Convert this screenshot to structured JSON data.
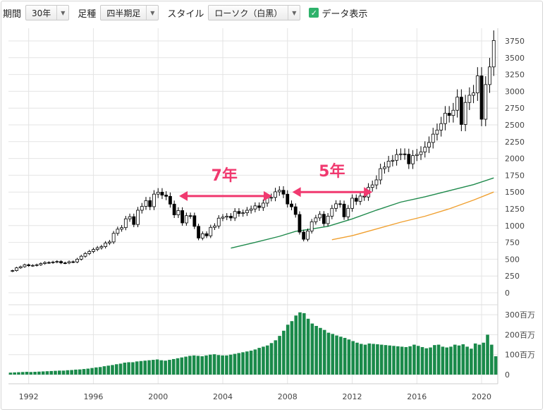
{
  "toolbar": {
    "period_label": "期間",
    "period_value": "30年",
    "bar_label": "足種",
    "bar_value": "四半期足",
    "style_label": "スタイル",
    "style_value": "ローソク（白黒）",
    "data_display_label": "データ表示",
    "data_display_checked": true
  },
  "chart_data": [
    {
      "type": "candlestick",
      "title": "",
      "xlabel": "",
      "ylabel": "",
      "ylim": [
        0,
        3750
      ],
      "yticks": [
        0,
        250,
        500,
        750,
        1000,
        1250,
        1500,
        1750,
        2000,
        2250,
        2500,
        2750,
        3000,
        3250,
        3500,
        3750
      ],
      "xticks": [
        "1992",
        "1996",
        "2000",
        "2004",
        "2008",
        "2012",
        "2016",
        "2020"
      ],
      "x_range": [
        1990.75,
        2021.0
      ],
      "grid": true,
      "candle_up_color": "#ffffff",
      "candle_down_color": "#000000",
      "closes": [
        [
          1991.0,
          330
        ],
        [
          1991.25,
          371
        ],
        [
          1991.5,
          388
        ],
        [
          1991.75,
          417
        ],
        [
          1992.0,
          403
        ],
        [
          1992.25,
          408
        ],
        [
          1992.5,
          417
        ],
        [
          1992.75,
          435
        ],
        [
          1993.0,
          451
        ],
        [
          1993.25,
          450
        ],
        [
          1993.5,
          458
        ],
        [
          1993.75,
          466
        ],
        [
          1994.0,
          445
        ],
        [
          1994.25,
          444
        ],
        [
          1994.5,
          462
        ],
        [
          1994.75,
          459
        ],
        [
          1995.0,
          500
        ],
        [
          1995.25,
          544
        ],
        [
          1995.5,
          584
        ],
        [
          1995.75,
          615
        ],
        [
          1996.0,
          645
        ],
        [
          1996.25,
          670
        ],
        [
          1996.5,
          687
        ],
        [
          1996.75,
          740
        ],
        [
          1997.0,
          757
        ],
        [
          1997.25,
          885
        ],
        [
          1997.5,
          947
        ],
        [
          1997.75,
          970
        ],
        [
          1998.0,
          1101
        ],
        [
          1998.25,
          1133
        ],
        [
          1998.5,
          1017
        ],
        [
          1998.75,
          1229
        ],
        [
          1999.0,
          1286
        ],
        [
          1999.25,
          1372
        ],
        [
          1999.5,
          1282
        ],
        [
          1999.75,
          1469
        ],
        [
          2000.0,
          1498
        ],
        [
          2000.25,
          1454
        ],
        [
          2000.5,
          1436
        ],
        [
          2000.75,
          1320
        ],
        [
          2001.0,
          1160
        ],
        [
          2001.25,
          1224
        ],
        [
          2001.5,
          1040
        ],
        [
          2001.75,
          1148
        ],
        [
          2002.0,
          1147
        ],
        [
          2002.25,
          989
        ],
        [
          2002.5,
          815
        ],
        [
          2002.75,
          879
        ],
        [
          2003.0,
          848
        ],
        [
          2003.25,
          974
        ],
        [
          2003.5,
          995
        ],
        [
          2003.75,
          1111
        ],
        [
          2004.0,
          1126
        ],
        [
          2004.25,
          1140
        ],
        [
          2004.5,
          1114
        ],
        [
          2004.75,
          1211
        ],
        [
          2005.0,
          1180
        ],
        [
          2005.25,
          1191
        ],
        [
          2005.5,
          1228
        ],
        [
          2005.75,
          1248
        ],
        [
          2006.0,
          1294
        ],
        [
          2006.25,
          1270
        ],
        [
          2006.5,
          1335
        ],
        [
          2006.75,
          1418
        ],
        [
          2007.0,
          1420
        ],
        [
          2007.25,
          1503
        ],
        [
          2007.5,
          1526
        ],
        [
          2007.75,
          1468
        ],
        [
          2008.0,
          1322
        ],
        [
          2008.25,
          1280
        ],
        [
          2008.5,
          1166
        ],
        [
          2008.75,
          903
        ],
        [
          2009.0,
          797
        ],
        [
          2009.25,
          919
        ],
        [
          2009.5,
          1057
        ],
        [
          2009.75,
          1115
        ],
        [
          2010.0,
          1169
        ],
        [
          2010.25,
          1030
        ],
        [
          2010.5,
          1141
        ],
        [
          2010.75,
          1257
        ],
        [
          2011.0,
          1325
        ],
        [
          2011.25,
          1320
        ],
        [
          2011.5,
          1131
        ],
        [
          2011.75,
          1257
        ],
        [
          2012.0,
          1408
        ],
        [
          2012.25,
          1362
        ],
        [
          2012.5,
          1440
        ],
        [
          2012.75,
          1426
        ],
        [
          2013.0,
          1569
        ],
        [
          2013.25,
          1606
        ],
        [
          2013.5,
          1681
        ],
        [
          2013.75,
          1848
        ],
        [
          2014.0,
          1872
        ],
        [
          2014.25,
          1960
        ],
        [
          2014.5,
          1972
        ],
        [
          2014.75,
          2058
        ],
        [
          2015.0,
          2067
        ],
        [
          2015.25,
          2063
        ],
        [
          2015.5,
          1920
        ],
        [
          2015.75,
          2043
        ],
        [
          2016.0,
          2059
        ],
        [
          2016.25,
          2098
        ],
        [
          2016.5,
          2168
        ],
        [
          2016.75,
          2238
        ],
        [
          2017.0,
          2362
        ],
        [
          2017.25,
          2423
        ],
        [
          2017.5,
          2519
        ],
        [
          2017.75,
          2673
        ],
        [
          2018.0,
          2640
        ],
        [
          2018.25,
          2718
        ],
        [
          2018.5,
          2913
        ],
        [
          2018.75,
          2506
        ],
        [
          2019.0,
          2834
        ],
        [
          2019.25,
          2941
        ],
        [
          2019.5,
          2976
        ],
        [
          2019.75,
          3230
        ],
        [
          2020.0,
          2584
        ],
        [
          2020.25,
          3100
        ],
        [
          2020.5,
          3363
        ],
        [
          2020.75,
          3756
        ]
      ]
    },
    {
      "type": "line",
      "series": [
        {
          "name": "",
          "color": "#1f8a4c",
          "values": [
            [
              2004.5,
              665
            ],
            [
              2006.0,
              750
            ],
            [
              2007.5,
              840
            ],
            [
              2008.5,
              915
            ],
            [
              2009.5,
              950
            ],
            [
              2010.5,
              990
            ],
            [
              2012.0,
              1100
            ],
            [
              2013.5,
              1230
            ],
            [
              2015.0,
              1350
            ],
            [
              2016.5,
              1430
            ],
            [
              2018.0,
              1520
            ],
            [
              2019.5,
              1610
            ],
            [
              2020.75,
              1710
            ]
          ]
        },
        {
          "name": "",
          "color": "#f0a030",
          "values": [
            [
              2010.75,
              790
            ],
            [
              2012.0,
              850
            ],
            [
              2013.5,
              950
            ],
            [
              2015.0,
              1050
            ],
            [
              2016.5,
              1140
            ],
            [
              2018.0,
              1250
            ],
            [
              2019.5,
              1380
            ],
            [
              2020.75,
              1500
            ]
          ]
        }
      ]
    },
    {
      "type": "bar",
      "title": "",
      "ylim": [
        0,
        350
      ],
      "yticks": [
        "0",
        "100百万",
        "200百万",
        "300百万"
      ],
      "ytick_values": [
        0,
        100,
        200,
        300
      ],
      "color": "#1a8a4a",
      "volumes_millions": [
        10,
        11,
        12,
        13,
        14,
        13,
        14,
        15,
        16,
        17,
        18,
        19,
        20,
        20,
        22,
        23,
        25,
        26,
        28,
        30,
        33,
        36,
        38,
        42,
        45,
        48,
        52,
        55,
        60,
        62,
        62,
        66,
        68,
        70,
        72,
        74,
        76,
        72,
        70,
        74,
        78,
        82,
        86,
        90,
        94,
        96,
        94,
        92,
        96,
        100,
        102,
        98,
        96,
        96,
        100,
        104,
        108,
        112,
        116,
        120,
        126,
        134,
        140,
        146,
        158,
        172,
        194,
        220,
        250,
        268,
        296,
        312,
        308,
        280,
        256,
        244,
        234,
        224,
        210,
        204,
        196,
        190,
        184,
        176,
        168,
        160,
        154,
        150,
        156,
        154,
        152,
        150,
        148,
        146,
        144,
        142,
        140,
        138,
        142,
        150,
        144,
        138,
        132,
        136,
        148,
        150,
        140,
        136,
        140,
        150,
        146,
        152,
        140,
        130,
        156,
        150,
        160,
        200,
        150,
        92
      ]
    }
  ],
  "annotations": {
    "left_span_label": "7年",
    "right_span_label": "5年",
    "arrow_color": "#f0396f"
  }
}
